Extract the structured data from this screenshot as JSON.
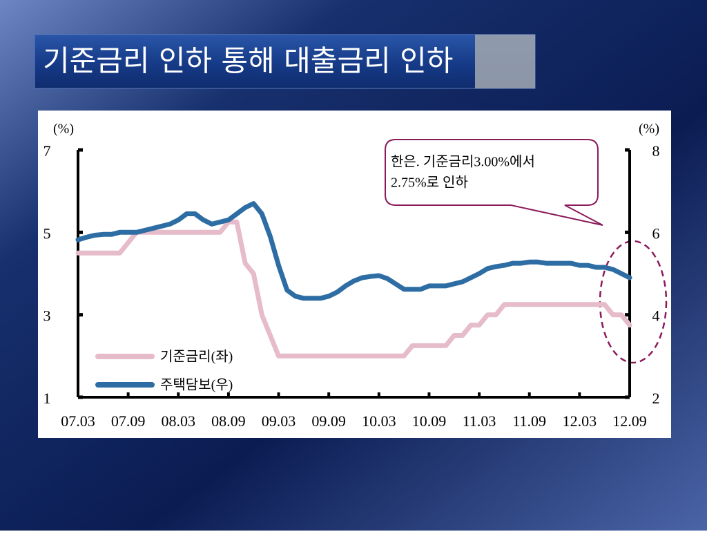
{
  "chart_data": {
    "type": "line",
    "title": "기준금리 인하 통해 대출금리 인하",
    "ylabel": "(%)",
    "y2label": "(%)",
    "annotations": [
      "한은. 기준금리3.00%에서",
      "2.75%로 인하"
    ],
    "categories": [
      "07.03",
      null,
      null,
      null,
      null,
      null,
      "07.09",
      null,
      null,
      null,
      null,
      null,
      "08.03",
      null,
      null,
      null,
      null,
      null,
      "08.09",
      null,
      null,
      null,
      null,
      null,
      "09.03",
      null,
      null,
      null,
      null,
      null,
      "09.09",
      null,
      null,
      null,
      null,
      null,
      "10.03",
      null,
      null,
      null,
      null,
      null,
      "10.09",
      null,
      null,
      null,
      null,
      null,
      "11.03",
      null,
      null,
      null,
      null,
      null,
      "11.09",
      null,
      null,
      null,
      null,
      null,
      "12.03",
      null,
      null,
      null,
      null,
      null,
      "12.09"
    ],
    "series": [
      {
        "name": "기준금리(좌)",
        "color": "#e6bccb",
        "axis": "y",
        "values": [
          4.5,
          4.5,
          4.5,
          4.5,
          4.5,
          4.5,
          4.75,
          5.0,
          5.0,
          5.0,
          5.0,
          5.0,
          5.0,
          5.0,
          5.0,
          5.0,
          5.0,
          5.0,
          5.25,
          5.25,
          4.25,
          4.0,
          3.0,
          2.5,
          2.0,
          2.0,
          2.0,
          2.0,
          2.0,
          2.0,
          2.0,
          2.0,
          2.0,
          2.0,
          2.0,
          2.0,
          2.0,
          2.0,
          2.0,
          2.0,
          2.25,
          2.25,
          2.25,
          2.25,
          2.25,
          2.5,
          2.5,
          2.75,
          2.75,
          3.0,
          3.0,
          3.25,
          3.25,
          3.25,
          3.25,
          3.25,
          3.25,
          3.25,
          3.25,
          3.25,
          3.25,
          3.25,
          3.25,
          3.25,
          3.0,
          3.0,
          2.75
        ]
      },
      {
        "name": "주택담보(우)",
        "color": "#2e6da4",
        "axis": "y2",
        "values": [
          5.82,
          5.88,
          5.93,
          5.95,
          5.95,
          6.0,
          6.0,
          6.0,
          6.05,
          6.1,
          6.15,
          6.2,
          6.3,
          6.45,
          6.45,
          6.3,
          6.2,
          6.25,
          6.3,
          6.45,
          6.6,
          6.7,
          6.45,
          5.9,
          5.2,
          4.6,
          4.45,
          4.4,
          4.4,
          4.4,
          4.45,
          4.55,
          4.7,
          4.82,
          4.9,
          4.93,
          4.95,
          4.88,
          4.75,
          4.62,
          4.62,
          4.62,
          4.7,
          4.7,
          4.7,
          4.75,
          4.8,
          4.9,
          5.0,
          5.12,
          5.17,
          5.2,
          5.25,
          5.25,
          5.28,
          5.28,
          5.25,
          5.25,
          5.25,
          5.25,
          5.2,
          5.2,
          5.15,
          5.15,
          5.1,
          5.0,
          4.9
        ]
      }
    ],
    "ylim": [
      1,
      7
    ],
    "yticks": [
      1,
      3,
      5,
      7
    ],
    "y2lim": [
      2,
      8
    ],
    "y2ticks": [
      2,
      4,
      6,
      8
    ]
  }
}
